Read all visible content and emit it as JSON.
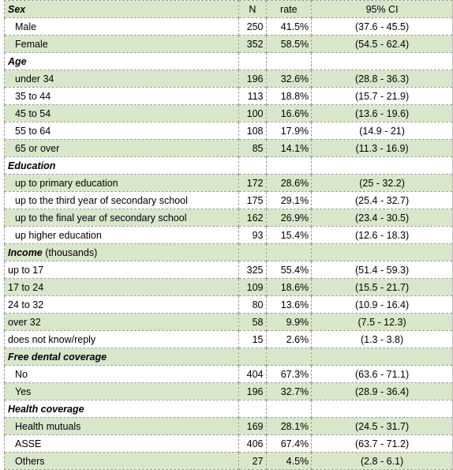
{
  "columns": {
    "n": "N",
    "rate": "rate",
    "ci": "95% CI"
  },
  "sections": [
    {
      "title": "Sex",
      "note": "",
      "indent": true,
      "rows": [
        {
          "label": "Male",
          "n": "250",
          "rate": "41.5%",
          "ci": "(37.6 - 45.5)"
        },
        {
          "label": "Female",
          "n": "352",
          "rate": "58.5%",
          "ci": "(54.5 - 62.4)"
        }
      ]
    },
    {
      "title": "Age",
      "note": "",
      "indent": true,
      "rows": [
        {
          "label": "under 34",
          "n": "196",
          "rate": "32.6%",
          "ci": "(28.8 - 36.3)"
        },
        {
          "label": "35 to 44",
          "n": "113",
          "rate": "18.8%",
          "ci": "(15.7 - 21.9)"
        },
        {
          "label": "45 to 54",
          "n": "100",
          "rate": "16.6%",
          "ci": "(13.6 - 19.6)"
        },
        {
          "label": "55 to 64",
          "n": "108",
          "rate": "17.9%",
          "ci": "(14.9 - 21)"
        },
        {
          "label": "65 or over",
          "n": "85",
          "rate": "14.1%",
          "ci": "(11.3 - 16.9)"
        }
      ]
    },
    {
      "title": "Education",
      "note": "",
      "indent": true,
      "rows": [
        {
          "label": "up to primary education",
          "n": "172",
          "rate": "28.6%",
          "ci": "(25 - 32.2)"
        },
        {
          "label": "up to the third year of secondary school",
          "n": "175",
          "rate": "29.1%",
          "ci": "(25.4 - 32.7)"
        },
        {
          "label": "up to the final year of secondary school",
          "n": "162",
          "rate": "26.9%",
          "ci": "(23.4 - 30.5)"
        },
        {
          "label": "up higher education",
          "n": "93",
          "rate": "15.4%",
          "ci": "(12.6 - 18.3)"
        }
      ]
    },
    {
      "title": "Income",
      "note": " (thousands)",
      "indent": false,
      "rows": [
        {
          "label": "up to 17",
          "n": "325",
          "rate": "55.4%",
          "ci": "(51.4 - 59.3)"
        },
        {
          "label": "17 to 24",
          "n": "109",
          "rate": "18.6%",
          "ci": "(15.5 - 21.7)"
        },
        {
          "label": "24 to 32",
          "n": "80",
          "rate": "13.6%",
          "ci": "(10.9 - 16.4)"
        },
        {
          "label": "over 32",
          "n": "58",
          "rate": "9.9%",
          "ci": "(7.5 - 12.3)"
        },
        {
          "label": "does not know/reply",
          "n": "15",
          "rate": "2.6%",
          "ci": "(1.3 - 3.8)"
        }
      ]
    },
    {
      "title": "Free dental coverage",
      "note": "",
      "indent": true,
      "rows": [
        {
          "label": "No",
          "n": "404",
          "rate": "67.3%",
          "ci": "(63.6 - 71.1)"
        },
        {
          "label": "Yes",
          "n": "196",
          "rate": "32.7%",
          "ci": "(28.9 - 36.4)"
        }
      ]
    },
    {
      "title": "Health coverage",
      "note": "",
      "indent": true,
      "rows": [
        {
          "label": "Health mutuals",
          "n": "169",
          "rate": "28.1%",
          "ci": "(24.5 - 31.7)"
        },
        {
          "label": "ASSE",
          "n": "406",
          "rate": "67.4%",
          "ci": "(63.7 - 71.2)"
        },
        {
          "label": "Others",
          "n": "27",
          "rate": "4.5%",
          "ci": "(2.8 - 6.1)"
        }
      ]
    }
  ]
}
